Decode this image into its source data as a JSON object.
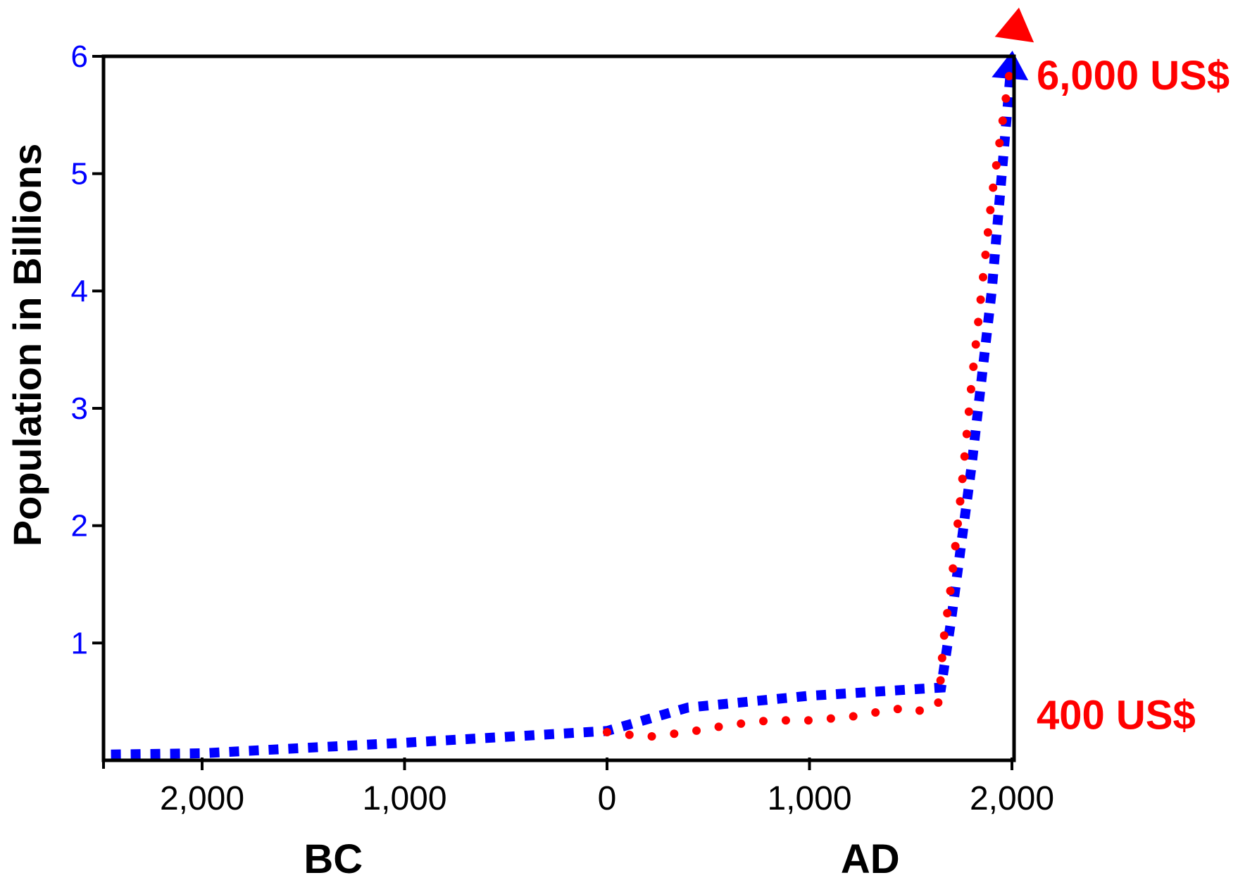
{
  "chart_data": {
    "type": "line",
    "title": "",
    "ylabel": "Population in Billions",
    "xlabel": "",
    "ylim": [
      0,
      6
    ],
    "xlim": [
      -2500,
      2000
    ],
    "yticks": [
      1,
      2,
      3,
      4,
      5,
      6
    ],
    "yticks_labels": [
      "1",
      "2",
      "3",
      "4",
      "5",
      "6"
    ],
    "xticks": [
      -2000,
      -1000,
      0,
      1000,
      2000
    ],
    "xticks_labels": [
      "2,000",
      "1,000",
      "0",
      "1,000",
      "2,000"
    ],
    "era_labels": [
      {
        "text": "BC",
        "x": -1300
      },
      {
        "text": "AD",
        "x": 1300
      }
    ],
    "grid": false,
    "legend": "none",
    "series": [
      {
        "color": "#0000ff",
        "style": "dashed-square",
        "arrow": true,
        "x": [
          -2450,
          -2000,
          -1000,
          0,
          400,
          1000,
          1650,
          1700,
          1800,
          1900,
          2000
        ],
        "y": [
          0.05,
          0.06,
          0.15,
          0.25,
          0.45,
          0.55,
          0.62,
          1.2,
          2.5,
          4.0,
          6.0
        ]
      },
      {
        "color": "#ff0000",
        "style": "dotted",
        "arrow": true,
        "x": [
          0,
          200,
          400,
          600,
          800,
          1000,
          1200,
          1400,
          1500,
          1550,
          1600,
          1640,
          1660,
          1700,
          1750,
          1800,
          1850,
          1900,
          1950,
          2000
        ],
        "y": [
          0.24,
          0.2,
          0.24,
          0.3,
          0.34,
          0.34,
          0.37,
          0.43,
          0.45,
          0.42,
          0.42,
          0.5,
          1.0,
          1.5,
          2.3,
          3.2,
          4.0,
          4.8,
          5.4,
          6.0
        ]
      }
    ],
    "annotations": [
      {
        "text": "6,000 US$",
        "color": "#ff0000",
        "y": 5.85
      },
      {
        "text": "400 US$",
        "color": "#ff0000",
        "y": 0.4
      }
    ],
    "colors": {
      "blue": "#0000ff",
      "red": "#ff0000",
      "axis": "#000000"
    }
  }
}
